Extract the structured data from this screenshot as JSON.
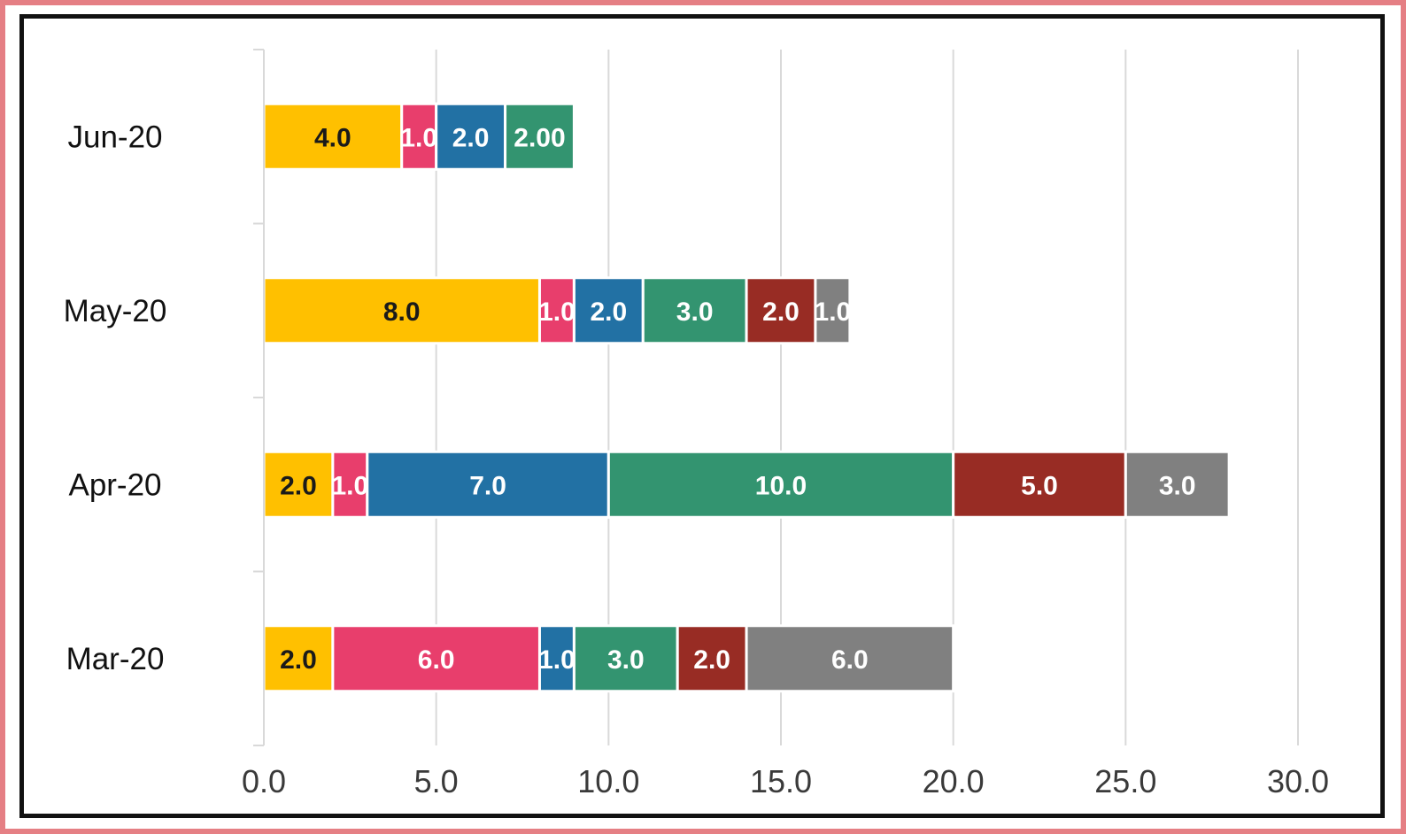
{
  "chart_data": {
    "type": "bar",
    "orientation": "horizontal",
    "stacked": true,
    "title": "",
    "xlabel": "",
    "ylabel": "",
    "categories": [
      "Mar-20",
      "Apr-20",
      "May-20",
      "Jun-20"
    ],
    "xlim": [
      0,
      30
    ],
    "x_ticks": [
      "0.0",
      "5.0",
      "10.0",
      "15.0",
      "20.0",
      "25.0",
      "30.0"
    ],
    "grid": "vertical",
    "legend": "none",
    "series": [
      {
        "color": "#ffc000",
        "values": [
          2,
          2,
          8,
          4
        ],
        "labels": [
          "2.0",
          "2.0",
          "8.0",
          "4.0"
        ],
        "label_color": "#1a1a1a"
      },
      {
        "color": "#e83e6c",
        "values": [
          6,
          1,
          1,
          1
        ],
        "labels": [
          "6.0",
          "1.0",
          "1.0",
          "1.0"
        ],
        "label_color": "#ffffff"
      },
      {
        "color": "#2271a4",
        "values": [
          1,
          7,
          2,
          2
        ],
        "labels": [
          "1.0",
          "7.0",
          "2.0",
          "2.0"
        ],
        "label_color": "#ffffff"
      },
      {
        "color": "#339470",
        "values": [
          3,
          10,
          3,
          2
        ],
        "labels": [
          "3.0",
          "10.0",
          "3.0",
          "2.00"
        ],
        "label_color": "#ffffff"
      },
      {
        "color": "#982c24",
        "values": [
          2,
          5,
          2,
          0
        ],
        "labels": [
          "2.0",
          "5.0",
          "2.0",
          ""
        ],
        "label_color": "#ffffff"
      },
      {
        "color": "#808080",
        "values": [
          6,
          3,
          1,
          0
        ],
        "labels": [
          "6.0",
          "3.0",
          "1.0",
          ""
        ],
        "label_color": "#ffffff"
      }
    ]
  },
  "frame": {
    "outer_color": "#e57f84",
    "inner_color": "#111111",
    "grid_color": "#d9d9d9"
  }
}
